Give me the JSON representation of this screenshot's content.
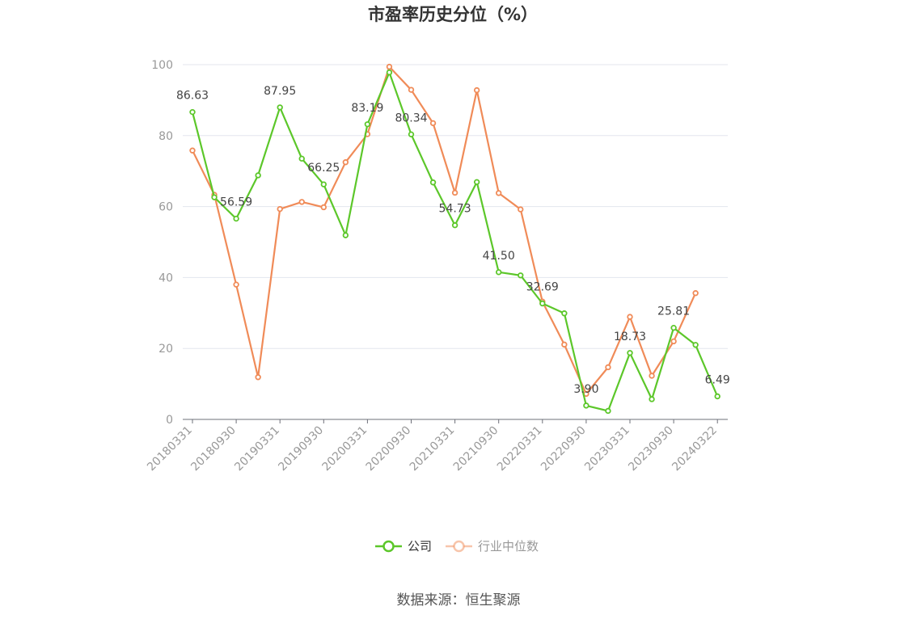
{
  "source": "数据来源：恒生聚源",
  "chart_data": {
    "type": "line",
    "title": "市盈率历史分位（%）",
    "xlabel": "",
    "ylabel": "",
    "ylim": [
      0,
      100
    ],
    "yticks": [
      0,
      20,
      40,
      60,
      80,
      100
    ],
    "grid": true,
    "legend_position": "bottom",
    "x_tick_labels": [
      "20180331",
      "20180930",
      "20190331",
      "20190930",
      "20200331",
      "20200930",
      "20210331",
      "20210930",
      "20220331",
      "20220930",
      "20230331",
      "20230930",
      "20240322"
    ],
    "x": [
      "20180331",
      "20180630",
      "20180930",
      "20181231",
      "20190331",
      "20190630",
      "20190930",
      "20191231",
      "20200331",
      "20200630",
      "20200930",
      "20201231",
      "20210331",
      "20210630",
      "20210930",
      "20211231",
      "20220331",
      "20220630",
      "20220930",
      "20221231",
      "20230331",
      "20230630",
      "20230930",
      "20231231",
      "20240322"
    ],
    "series": [
      {
        "name": "公司",
        "color": "#5cc72a",
        "values": [
          86.63,
          62.6,
          56.59,
          68.8,
          87.95,
          73.5,
          66.25,
          51.9,
          83.19,
          97.8,
          80.34,
          66.8,
          54.73,
          66.9,
          41.5,
          40.6,
          32.69,
          29.9,
          3.9,
          2.4,
          18.73,
          5.7,
          25.81,
          21.0,
          6.49
        ],
        "labels": [
          "86.63",
          "",
          "56.59",
          "",
          "87.95",
          "",
          "66.25",
          "",
          "83.19",
          "",
          "80.34",
          "",
          "54.73",
          "",
          "41.50",
          "",
          "32.69",
          "",
          "3.90",
          "",
          "18.73",
          "",
          "25.81",
          "",
          "6.49"
        ]
      },
      {
        "name": "行业中位数",
        "color": "#f08b58",
        "values": [
          75.8,
          63.3,
          38.0,
          11.9,
          59.3,
          61.3,
          59.8,
          72.5,
          80.4,
          99.4,
          92.9,
          83.5,
          63.9,
          92.8,
          63.8,
          59.2,
          33.2,
          21.1,
          7.2,
          14.7,
          28.9,
          12.3,
          22.0,
          35.6,
          null
        ]
      }
    ]
  }
}
